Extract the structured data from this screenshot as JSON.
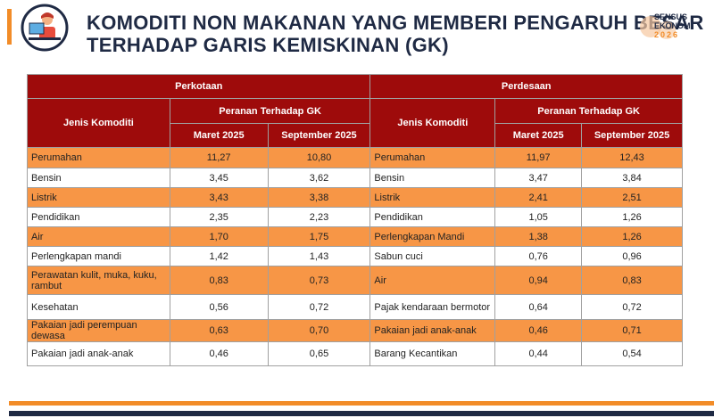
{
  "header": {
    "title_line1": "KOMODITI NON MAKANAN YANG MEMBERI PENGARUH BESAR",
    "title_line2": "TERHADAP GARIS KEMISKINAN (GK)",
    "logo": [
      "SENSUS",
      "EKONOMI",
      "2026"
    ]
  },
  "table": {
    "groups": [
      "Perkotaan",
      "Perdesaan"
    ],
    "column_header": "Jenis Komoditi",
    "sub_header": "Peranan Terhadap GK",
    "periods": [
      "Maret 2025",
      "September 2025"
    ],
    "rows": [
      [
        "Perumahan",
        "11,27",
        "10,80",
        "Perumahan",
        "11,97",
        "12,43"
      ],
      [
        "Bensin",
        "3,45",
        "3,62",
        "Bensin",
        "3,47",
        "3,84"
      ],
      [
        "Listrik",
        "3,43",
        "3,38",
        "Listrik",
        "2,41",
        "2,51"
      ],
      [
        "Pendidikan",
        "2,35",
        "2,23",
        "Pendidikan",
        "1,05",
        "1,26"
      ],
      [
        "Air",
        "1,70",
        "1,75",
        "Perlengkapan Mandi",
        "1,38",
        "1,26"
      ],
      [
        "Perlengkapan mandi",
        "1,42",
        "1,43",
        "Sabun cuci",
        "0,76",
        "0,96"
      ],
      [
        "Perawatan kulit, muka, kuku, rambut",
        "0,83",
        "0,73",
        "Air",
        "0,94",
        "0,83"
      ],
      [
        "Kesehatan",
        "0,56",
        "0,72",
        "Pajak kendaraan bermotor",
        "0,64",
        "0,72"
      ],
      [
        "Pakaian jadi perempuan dewasa",
        "0,63",
        "0,70",
        "Pakaian jadi anak-anak",
        "0,46",
        "0,71"
      ],
      [
        "Pakaian jadi anak-anak",
        "0,46",
        "0,65",
        "Barang Kecantikan",
        "0,44",
        "0,54"
      ]
    ]
  }
}
